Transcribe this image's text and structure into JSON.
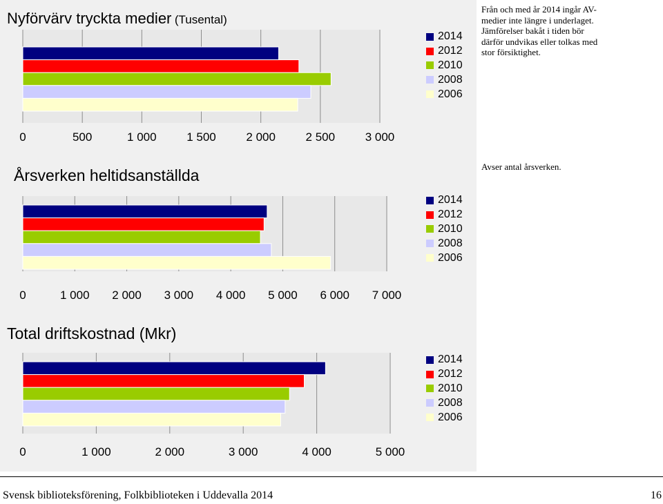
{
  "colors": {
    "panel_bg": "#f0f0f0",
    "plot_bg": "#e8e8e8",
    "grid": "#8c8c8c",
    "bar_outline": "#ffffff"
  },
  "chart_data": [
    {
      "type": "bar",
      "orientation": "horizontal",
      "title": "Nyförvärv tryckta medier",
      "title_unit": "(Tusental)",
      "note": "Från och med år 2014 ingår AV-medier inte längre  i underlaget. Jämförelser bakåt i tiden bör därför undvikas eller tolkas med stor försiktighet.",
      "xlim": [
        0,
        3000
      ],
      "x_ticks": [
        "0",
        "500",
        "1 000",
        "1 500",
        "2 000",
        "2 500",
        "3 000"
      ],
      "x_tick_values": [
        0,
        500,
        1000,
        1500,
        2000,
        2500,
        3000
      ],
      "grid": true,
      "legend_position": "right",
      "series": [
        {
          "name": "2014",
          "color": "#000080",
          "value": 2150
        },
        {
          "name": "2012",
          "color": "#ff0000",
          "value": 2320
        },
        {
          "name": "2010",
          "color": "#99cc00",
          "value": 2590
        },
        {
          "name": "2008",
          "color": "#ccccff",
          "value": 2420
        },
        {
          "name": "2006",
          "color": "#ffffcc",
          "value": 2310
        }
      ]
    },
    {
      "type": "bar",
      "orientation": "horizontal",
      "title": "Årsverken heltidsanställda",
      "title_unit": "",
      "note": "Avser antal årsverken.",
      "xlim": [
        0,
        7000
      ],
      "x_ticks": [
        "0",
        "1 000",
        "2 000",
        "3 000",
        "4 000",
        "5 000",
        "6 000",
        "7 000"
      ],
      "x_tick_values": [
        0,
        1000,
        2000,
        3000,
        4000,
        5000,
        6000,
        7000
      ],
      "grid": true,
      "legend_position": "right",
      "series": [
        {
          "name": "2014",
          "color": "#000080",
          "value": 4700
        },
        {
          "name": "2012",
          "color": "#ff0000",
          "value": 4640
        },
        {
          "name": "2010",
          "color": "#99cc00",
          "value": 4570
        },
        {
          "name": "2008",
          "color": "#ccccff",
          "value": 4780
        },
        {
          "name": "2006",
          "color": "#ffffcc",
          "value": 5920
        }
      ]
    },
    {
      "type": "bar",
      "orientation": "horizontal",
      "title": "Total driftskostnad (Mkr)",
      "title_unit": "",
      "note": "",
      "xlim": [
        0,
        5000
      ],
      "x_ticks": [
        "0",
        "1 000",
        "2 000",
        "3 000",
        "4 000",
        "5 000"
      ],
      "x_tick_values": [
        0,
        1000,
        2000,
        3000,
        4000,
        5000
      ],
      "grid": true,
      "legend_position": "right",
      "series": [
        {
          "name": "2014",
          "color": "#000080",
          "value": 4120
        },
        {
          "name": "2012",
          "color": "#ff0000",
          "value": 3830
        },
        {
          "name": "2010",
          "color": "#99cc00",
          "value": 3630
        },
        {
          "name": "2008",
          "color": "#ccccff",
          "value": 3570
        },
        {
          "name": "2006",
          "color": "#ffffcc",
          "value": 3510
        }
      ]
    }
  ],
  "footer": {
    "text": "Svensk biblioteksförening, Folkbiblioteken i Uddevalla 2014",
    "page": "16"
  }
}
